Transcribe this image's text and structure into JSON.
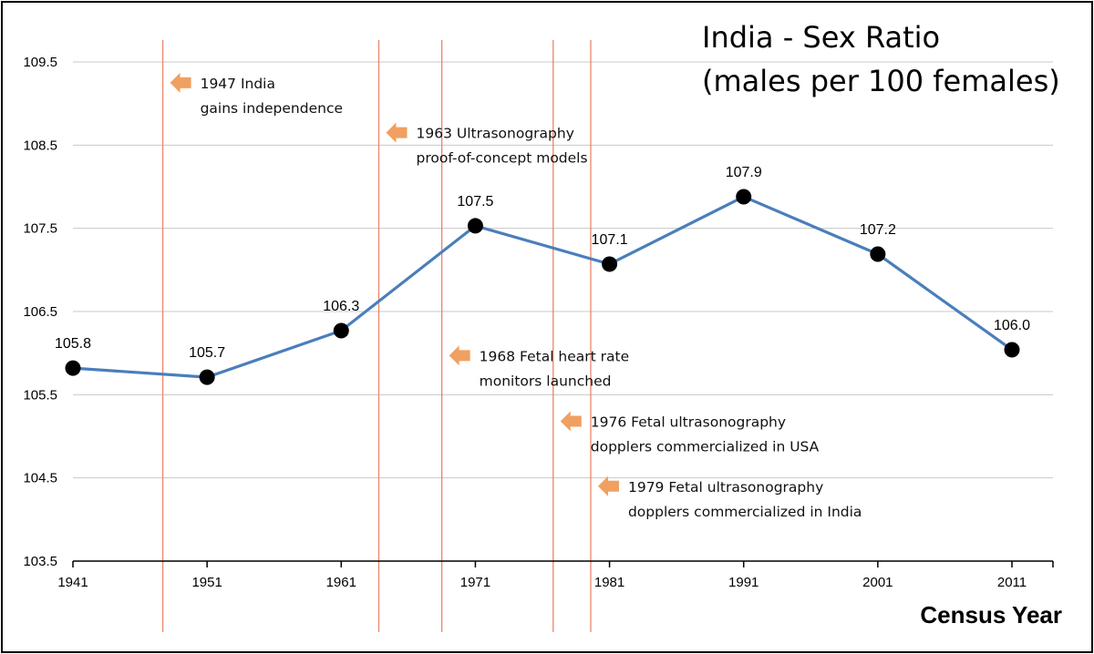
{
  "chart_data": {
    "type": "line",
    "title_lines": [
      "India - Sex Ratio",
      "(males per 100 females)"
    ],
    "xlabel": "Census Year",
    "ylabel": "",
    "x": [
      1941,
      1951,
      1961,
      1971,
      1981,
      1991,
      2001,
      2011
    ],
    "series": [
      {
        "values": [
          105.82,
          105.71,
          106.27,
          107.53,
          107.07,
          107.88,
          107.19,
          106.04
        ],
        "labels": [
          "105.8",
          "105.7",
          "106.3",
          "107.5",
          "107.1",
          "107.9",
          "107.2",
          "106.0"
        ],
        "color": "#4a7ebb"
      }
    ],
    "ylim": [
      103.5,
      109.5
    ],
    "xlim": [
      1941,
      2014
    ],
    "yticks": [
      103.5,
      104.5,
      105.5,
      106.5,
      107.5,
      108.5,
      109.5
    ],
    "yticks_labels": [
      "103.5",
      "104.5",
      "105.5",
      "106.5",
      "107.5",
      "108.5",
      "109.5"
    ],
    "xticks": [
      1941,
      1951,
      1961,
      1971,
      1981,
      1991,
      2001,
      2011
    ],
    "xticks_labels": [
      "1941",
      "1951",
      "1961",
      "1971",
      "1981",
      "1991",
      "2001",
      "2011"
    ],
    "grid": true,
    "annotations": [
      {
        "year": 1947.7,
        "lines": [
          "1947 India",
          "gains independence"
        ],
        "value": 109.25
      },
      {
        "year": 1963.8,
        "lines": [
          "1963 Ultrasonography",
          "proof-of-concept models"
        ],
        "value": 108.65
      },
      {
        "year": 1968.5,
        "lines": [
          "1968 Fetal heart rate",
          "monitors launched"
        ],
        "value": 105.97
      },
      {
        "year": 1976.8,
        "lines": [
          "1976 Fetal ultrasonography",
          "dopplers  commercialized in USA"
        ],
        "value": 105.18
      },
      {
        "year": 1979.6,
        "lines": [
          "1979 Fetal ultrasonography",
          "dopplers  commercialized in India"
        ],
        "value": 104.4
      }
    ],
    "colors": {
      "line": "#4a7ebb",
      "marker": "#000000",
      "event_line": "#e8866a",
      "arrow": "#f0a060",
      "grid": "#c8c8c8"
    }
  }
}
